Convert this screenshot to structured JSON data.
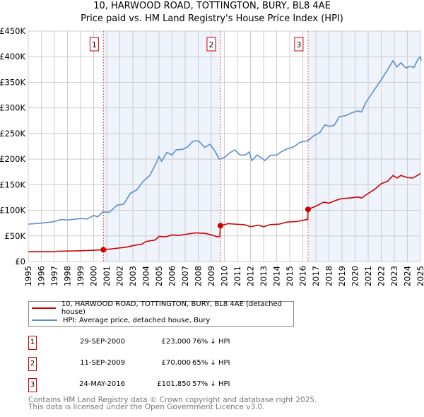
{
  "chart_data": {
    "type": "line",
    "title": "10, HARWOOD ROAD, TOTTINGTON, BURY, BL8 4AE",
    "subtitle": "Price paid vs. HM Land Registry's House Price Index (HPI)",
    "xlim": [
      1995,
      2025
    ],
    "ylim": [
      0,
      450000
    ],
    "x_ticks": [
      "1995",
      "1996",
      "1997",
      "1998",
      "1999",
      "2000",
      "2001",
      "2002",
      "2003",
      "2004",
      "2005",
      "2006",
      "2007",
      "2008",
      "2009",
      "2010",
      "2011",
      "2012",
      "2013",
      "2014",
      "2015",
      "2016",
      "2017",
      "2018",
      "2019",
      "2020",
      "2021",
      "2022",
      "2023",
      "2024",
      "2025"
    ],
    "y_ticks": [
      {
        "v": 0,
        "label": "£0"
      },
      {
        "v": 50000,
        "label": "£50K"
      },
      {
        "v": 100000,
        "label": "£100K"
      },
      {
        "v": 150000,
        "label": "£150K"
      },
      {
        "v": 200000,
        "label": "£200K"
      },
      {
        "v": 250000,
        "label": "£250K"
      },
      {
        "v": 300000,
        "label": "£300K"
      },
      {
        "v": 350000,
        "label": "£350K"
      },
      {
        "v": 400000,
        "label": "£400K"
      },
      {
        "v": 450000,
        "label": "£450K"
      }
    ],
    "grid": true,
    "series": [
      {
        "name": "10, HARWOOD ROAD, TOTTINGTON, BURY, BL8 4AE (detached house)",
        "color": "#cc0000",
        "x": [
          1995,
          1997,
          1997.2,
          1999,
          2000,
          2000.75,
          2001.5,
          2002.5,
          2003,
          2003.7,
          2004,
          2004.7,
          2005,
          2005.5,
          2006,
          2006.5,
          2007,
          2007.8,
          2008.5,
          2009,
          2009.5,
          2009.65,
          2009.7,
          2010.3,
          2010.8,
          2011.5,
          2012,
          2012.6,
          2013,
          2013.5,
          2014.2,
          2014.8,
          2015.5,
          2016.3,
          2016.38,
          2016.4,
          2017,
          2017.6,
          2018,
          2018.6,
          2019,
          2019.6,
          2020.2,
          2020.5,
          2021,
          2021.5,
          2022,
          2022.5,
          2022.9,
          2023.2,
          2023.5,
          2024,
          2024.4,
          2024.9,
          2025
        ],
        "y": [
          19,
          19,
          20,
          21,
          22,
          23,
          25,
          28,
          31,
          34,
          39,
          42,
          49,
          48,
          52,
          51,
          53,
          56,
          55,
          52,
          48,
          49,
          70,
          74,
          73,
          72,
          68,
          71,
          68,
          72,
          73,
          77,
          78,
          82,
          82,
          101.85,
          108,
          116,
          114,
          120,
          123,
          124,
          126,
          124,
          133,
          141,
          152,
          157,
          168,
          163,
          168,
          164,
          163,
          170,
          172
        ]
      },
      {
        "name": "HPI: Average price, detached house, Bury",
        "color": "#5b8fd0",
        "x": [
          1995,
          1996,
          1997,
          1997.5,
          1998,
          1999,
          1999.5,
          2000,
          2000.3,
          2000.7,
          2001.2,
          2001.8,
          2002.3,
          2002.8,
          2003.3,
          2003.8,
          2004.3,
          2004.8,
          2005,
          2005.2,
          2005.6,
          2006,
          2006.3,
          2006.8,
          2007.2,
          2007.6,
          2008,
          2008.5,
          2008.9,
          2009.3,
          2009.6,
          2010,
          2010.4,
          2010.8,
          2011.2,
          2011.6,
          2011.9,
          2012.1,
          2012.5,
          2012.9,
          2013.1,
          2013.5,
          2014,
          2014.4,
          2014.8,
          2015.3,
          2015.8,
          2016.4,
          2016.8,
          2017.3,
          2017.7,
          2018,
          2018.4,
          2018.8,
          2019.3,
          2019.7,
          2020.2,
          2020.5,
          2020.8,
          2021.2,
          2021.6,
          2022,
          2022.5,
          2022.9,
          2023.2,
          2023.5,
          2023.9,
          2024.2,
          2024.5,
          2024.8,
          2025,
          2025.05
        ],
        "y": [
          73,
          75,
          78,
          82,
          81,
          84,
          83,
          90,
          87,
          97,
          96,
          110,
          112,
          133,
          140,
          157,
          168,
          193,
          205,
          196,
          213,
          208,
          218,
          219,
          224,
          235,
          236,
          223,
          229,
          215,
          200,
          203,
          212,
          218,
          208,
          208,
          214,
          197,
          208,
          201,
          197,
          207,
          208,
          215,
          220,
          224,
          233,
          236,
          245,
          252,
          267,
          264,
          266,
          283,
          285,
          290,
          294,
          292,
          310,
          325,
          340,
          355,
          375,
          392,
          380,
          388,
          378,
          381,
          379,
          395,
          400,
          392
        ]
      }
    ],
    "y_units": "thousands GBP",
    "sales": [
      {
        "n": "1",
        "x": 2000.75,
        "date": "29-SEP-2000",
        "price": "£23,000",
        "value": 23,
        "hpi": "76% ↓ HPI"
      },
      {
        "n": "2",
        "x": 2009.7,
        "date": "11-SEP-2009",
        "price": "£70,000",
        "value": 70,
        "hpi": "65% ↓ HPI"
      },
      {
        "n": "3",
        "x": 2016.4,
        "date": "24-MAY-2016",
        "price": "£101,850",
        "value": 101.85,
        "hpi": "57% ↓ HPI"
      }
    ],
    "legend_position": "below"
  },
  "footer": {
    "line1": "Contains HM Land Registry data © Crown copyright and database right 2025.",
    "line2": "This data is licensed under the Open Government Licence v3.0."
  }
}
